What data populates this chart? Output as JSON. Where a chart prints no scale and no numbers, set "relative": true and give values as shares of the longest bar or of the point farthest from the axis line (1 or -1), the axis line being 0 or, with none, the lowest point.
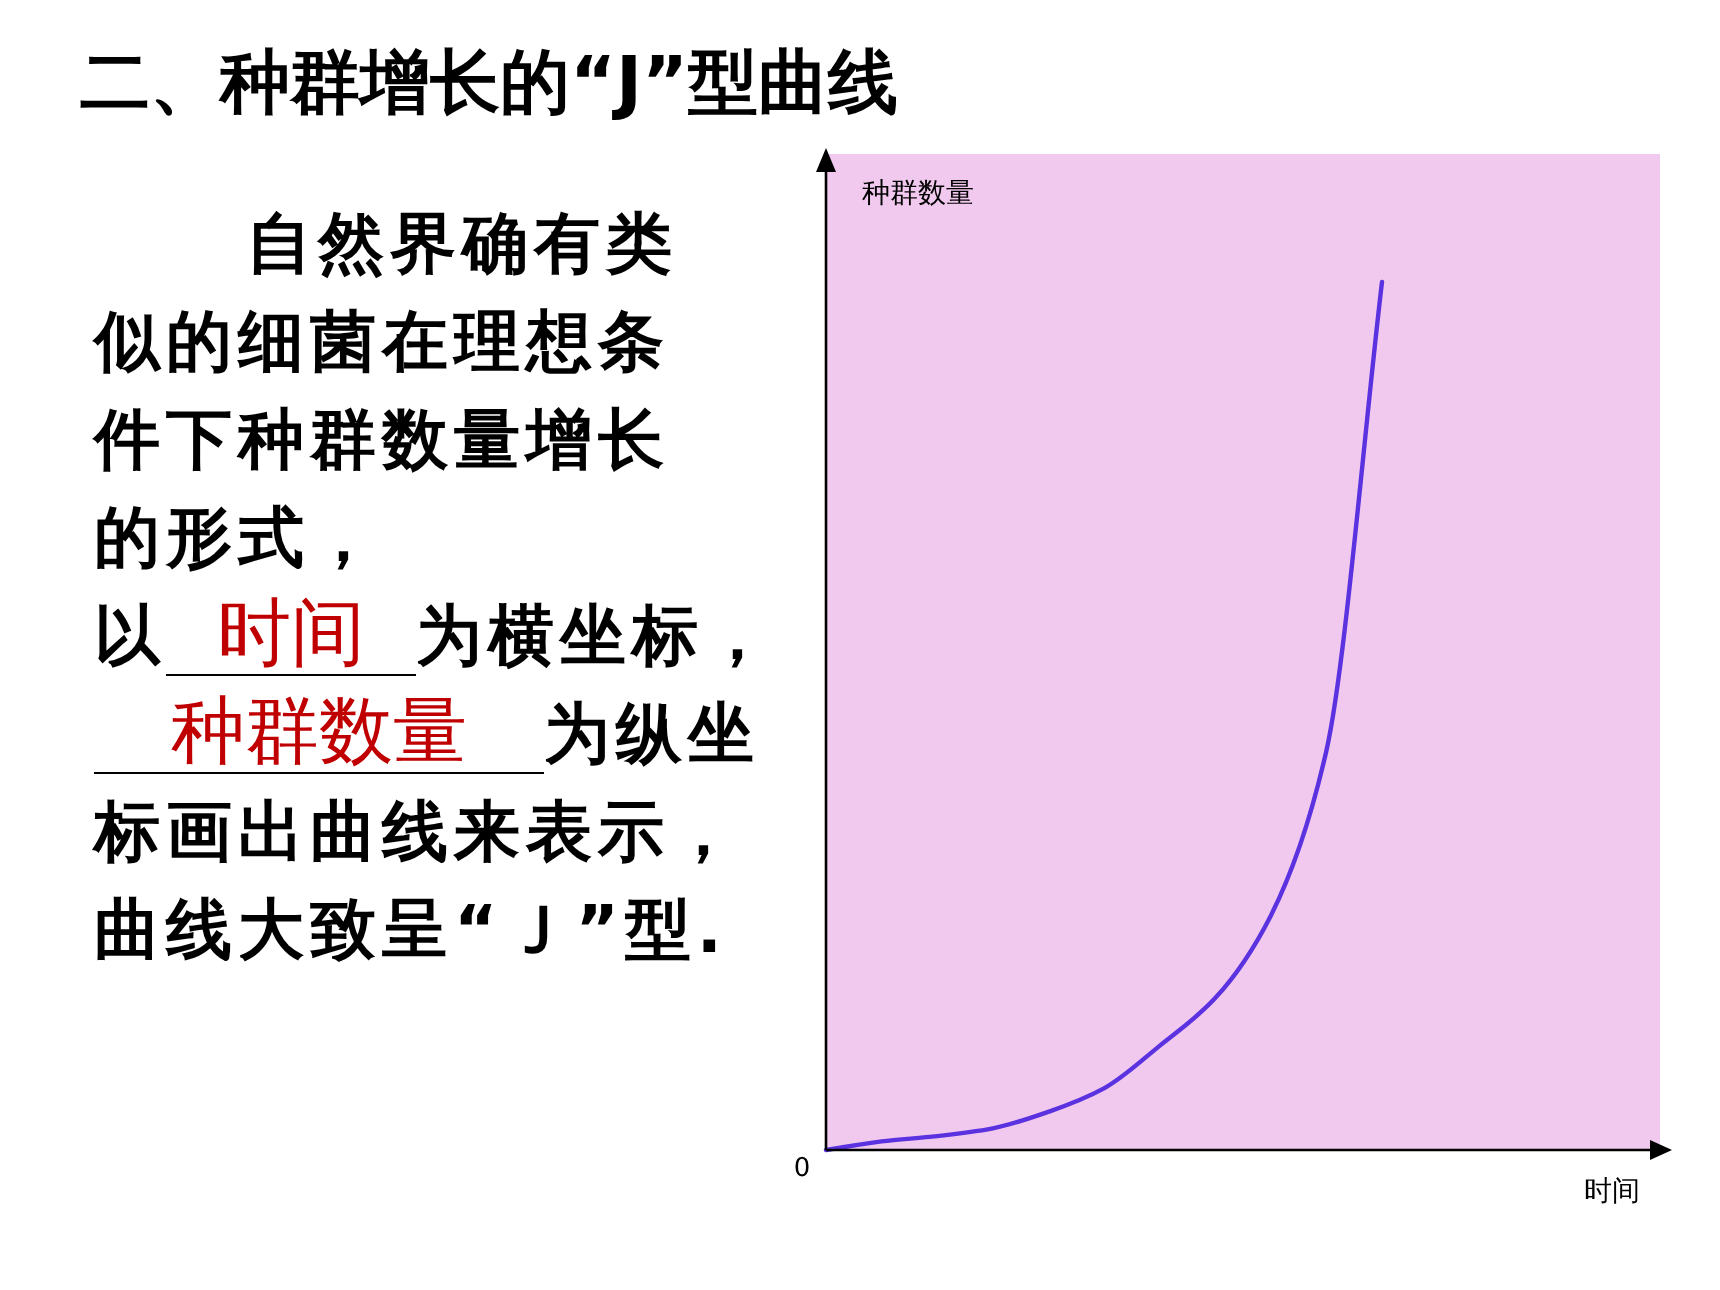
{
  "chart_data": {
    "type": "line",
    "title": "二、种群增长的“J”型曲线",
    "xlabel": "时间",
    "ylabel": "种群数量",
    "relative": true,
    "categories": [
      null,
      null,
      null,
      null,
      null,
      null,
      null,
      null,
      null,
      null,
      null,
      null,
      null,
      null,
      null,
      null
    ],
    "series": [
      {
        "color": "#5a32e0",
        "values": [
          0,
          0.01,
          0.016,
          0.025,
          0.044,
          0.071,
          0.12,
          0.175,
          0.27,
          0.46,
          1,
          null,
          null,
          null,
          null,
          null
        ]
      }
    ],
    "annotations": [
      "自然界确有类似的细菌在理想条件下种群数量增长的形式，",
      "以",
      "时间",
      "为横坐标，",
      "种群数量",
      "为纵坐标画出曲线来表示，曲线大致呈“Ｊ”型.",
      "0"
    ]
  }
}
